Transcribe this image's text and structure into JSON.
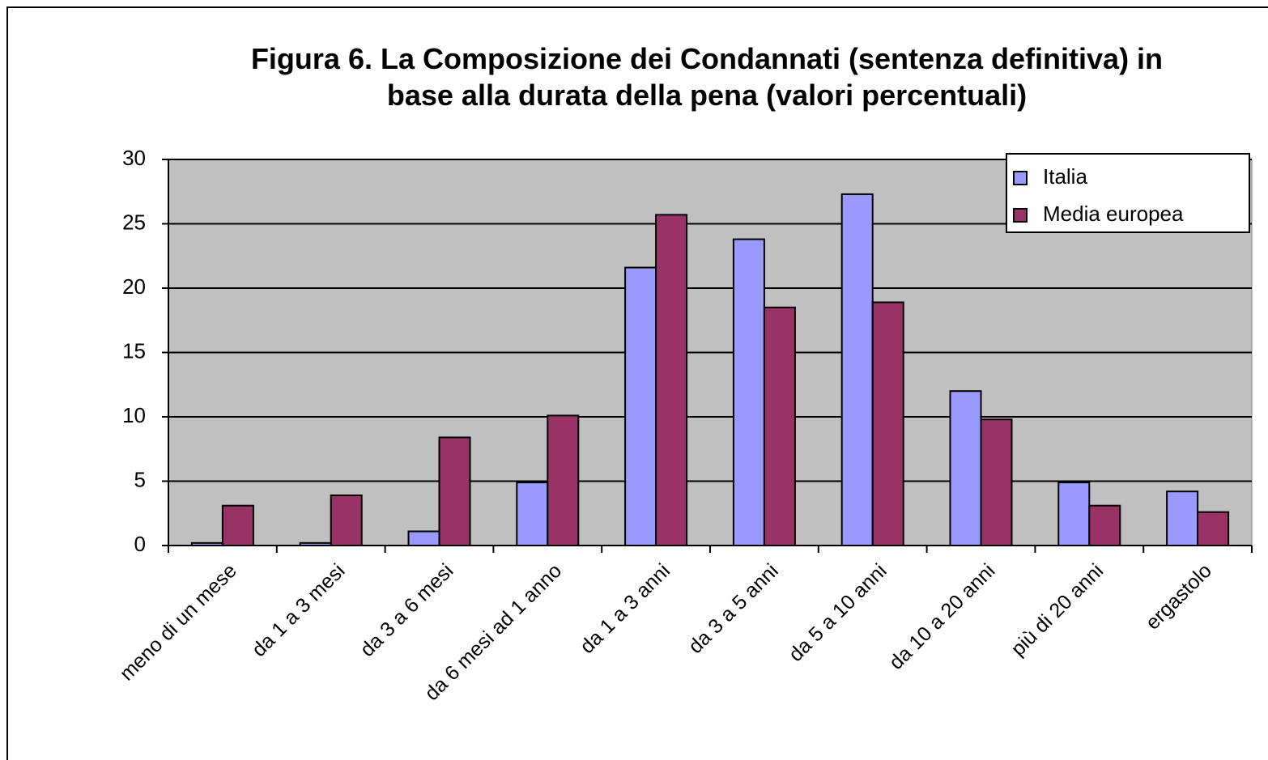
{
  "chart_data": {
    "type": "bar",
    "title": "Figura 6. La Composizione dei Condannati (sentenza definitiva) in base alla durata della pena (valori percentuali)",
    "categories": [
      "meno di un mese",
      "da 1 a 3 mesi",
      "da 3 a 6 mesi",
      "da 6 mesi ad 1 anno",
      "da 1 a 3 anni",
      "da 3 a 5 anni",
      "da 5 a 10 anni",
      "da 10 a 20 anni",
      "più di 20 anni",
      "ergastolo"
    ],
    "series": [
      {
        "name": "Italia",
        "color": "#9999ff",
        "values": [
          0.2,
          0.2,
          1.1,
          4.9,
          21.6,
          23.8,
          27.3,
          12.0,
          4.9,
          4.2
        ]
      },
      {
        "name": "Media europea",
        "color": "#993366",
        "values": [
          3.1,
          3.9,
          8.4,
          10.1,
          25.7,
          18.5,
          18.9,
          9.8,
          3.1,
          2.6
        ]
      }
    ],
    "ylim": [
      0,
      30
    ],
    "yticks": [
      0,
      5,
      10,
      15,
      20,
      25,
      30
    ],
    "grid": true,
    "legend": "top-right",
    "plot_background": "#c0c0c0"
  }
}
